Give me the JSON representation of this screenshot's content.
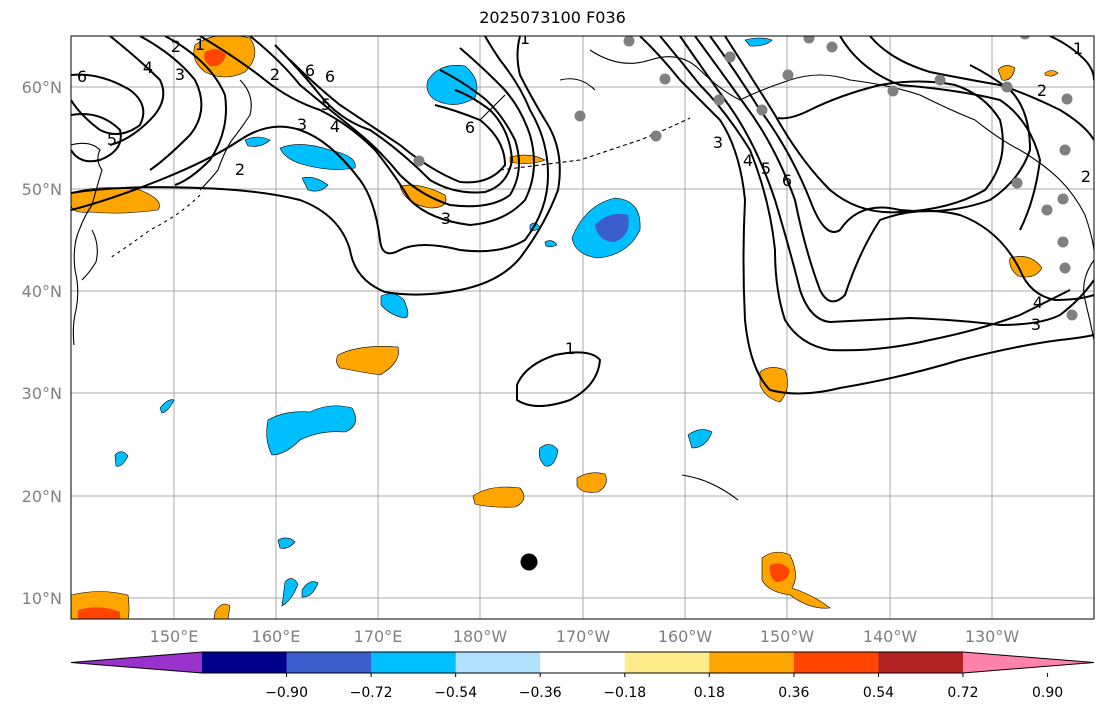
{
  "title": "2025073100 F036",
  "lat_labels": [
    "10°N",
    "20°N",
    "30°N",
    "40°N",
    "50°N",
    "60°N"
  ],
  "lon_labels": [
    "150°E",
    "160°E",
    "170°E",
    "180°W",
    "170°W",
    "160°W",
    "150°W",
    "140°W",
    "130°W"
  ],
  "contour_labels": [
    "6",
    "4",
    "3",
    "2",
    "1",
    "6",
    "5",
    "2",
    "2",
    "6",
    "5",
    "4",
    "3",
    "6",
    "3",
    "1",
    "1",
    "3",
    "4",
    "5",
    "6",
    "2",
    "1",
    "4",
    "3",
    "2"
  ],
  "colorbar": {
    "colors": [
      "#9932CC",
      "#00008B",
      "#3A5FCD",
      "#00BFFF",
      "#B0E2FF",
      "#FFFFFF",
      "#FFEC8B",
      "#FFA500",
      "#FF4500",
      "#B22222",
      "#FF82AB"
    ],
    "tick_labels": [
      "−0.90",
      "−0.72",
      "−0.54",
      "−0.36",
      "−0.18",
      "0.18",
      "0.36",
      "0.54",
      "0.72",
      "0.90"
    ]
  },
  "colors": {
    "grid": "#a9a9a9",
    "tick_text": "#808080",
    "station_marker": "#808080",
    "center_marker": "#000000"
  }
}
